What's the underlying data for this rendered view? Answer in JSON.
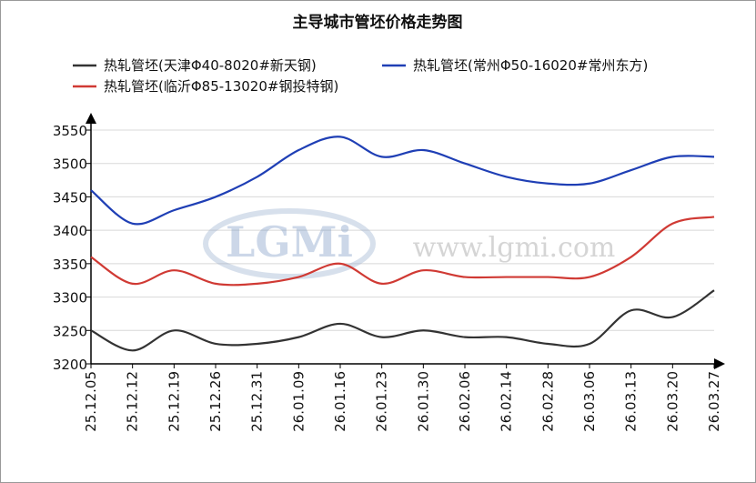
{
  "chart_data": {
    "type": "line",
    "title": "主导城市管坯价格走势图",
    "logo": "LGMi",
    "watermark": "www.lgmi.com",
    "categories": [
      "25.12.05",
      "25.12.12",
      "25.12.19",
      "25.12.26",
      "25.12.31",
      "26.01.09",
      "26.01.16",
      "26.01.23",
      "26.01.30",
      "26.02.06",
      "26.02.14",
      "26.02.28",
      "26.03.06",
      "26.03.13",
      "26.03.20",
      "26.03.27"
    ],
    "series": [
      {
        "name": "热轧管坯(天津Φ40-8020#新天钢)",
        "color": "#333333",
        "values": [
          3250,
          3220,
          3250,
          3230,
          3230,
          3240,
          3260,
          3240,
          3250,
          3240,
          3240,
          3230,
          3230,
          3280,
          3270,
          3310
        ]
      },
      {
        "name": "热轧管坯(常州Φ50-16020#常州东方)",
        "color": "#1f3fb5",
        "values": [
          3460,
          3410,
          3430,
          3450,
          3480,
          3520,
          3540,
          3510,
          3520,
          3500,
          3480,
          3470,
          3470,
          3490,
          3510,
          3510
        ]
      },
      {
        "name": "热轧管坯(临沂Φ85-13020#钢投特钢)",
        "color": "#d03a34",
        "values": [
          3360,
          3320,
          3340,
          3320,
          3320,
          3330,
          3350,
          3320,
          3340,
          3330,
          3330,
          3330,
          3330,
          3360,
          3410,
          3420
        ]
      }
    ],
    "ylim": [
      3200,
      3550
    ],
    "yticks": [
      3200,
      3250,
      3300,
      3350,
      3400,
      3450,
      3500,
      3550
    ],
    "grid": true
  }
}
